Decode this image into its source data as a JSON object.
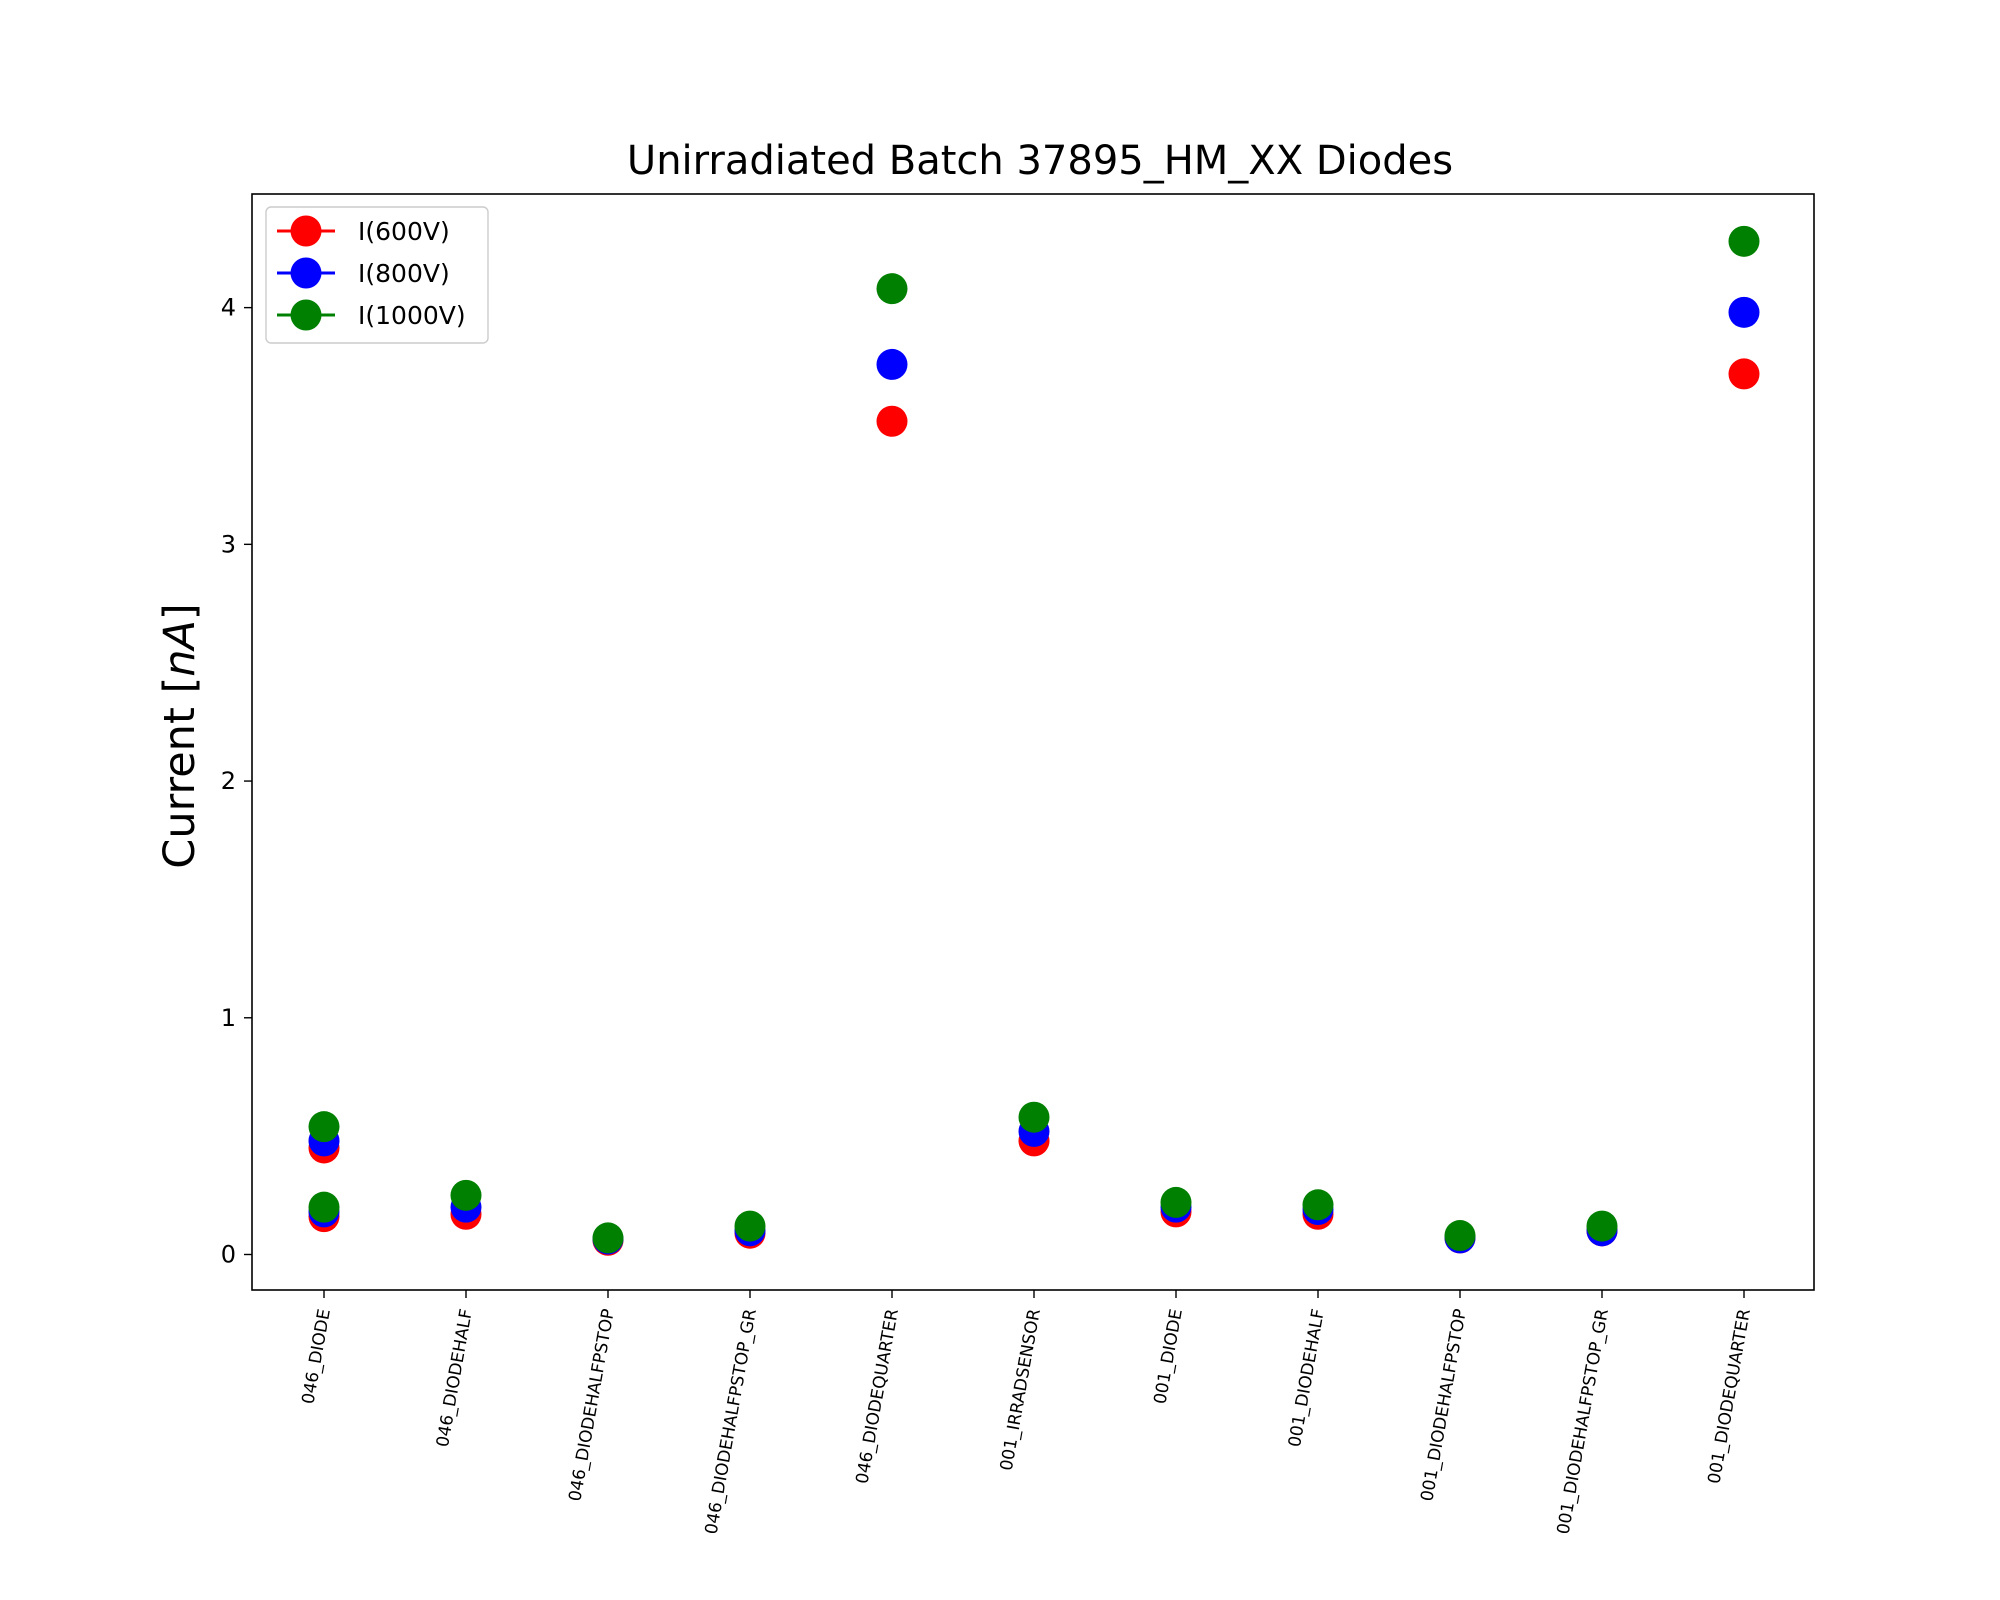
{
  "chart_data": {
    "type": "scatter",
    "title": "Unirradiated Batch 37895_HM_XX Diodes",
    "xlabel": "",
    "ylabel": "Current [nA]",
    "ylabel_plain": "Current [",
    "ylabel_italic": "nA",
    "ylabel_close": "]",
    "categories": [
      "046_DIODE",
      "046_DIODEHALF",
      "046_DIODEHALFPSTOP",
      "046_DIODEHALFPSTOP_GR",
      "046_DIODEQUARTER",
      "001_IRRADSENSOR",
      "001_DIODE",
      "001_DIODEHALF",
      "001_DIODEHALFPSTOP",
      "001_DIODEHALFPSTOP_GR",
      "001_DIODEQUARTER"
    ],
    "ylim": [
      -0.15,
      4.48
    ],
    "yticks": [
      0,
      1,
      2,
      3,
      4
    ],
    "grid": false,
    "legend_position": "top-left",
    "series": [
      {
        "name": "I(600V)",
        "color": "#ff0000",
        "points": [
          [
            0,
            0.45
          ],
          [
            0,
            0.16
          ],
          [
            1,
            0.17
          ],
          [
            2,
            0.06
          ],
          [
            3,
            0.09
          ],
          [
            4,
            3.52
          ],
          [
            5,
            0.48
          ],
          [
            6,
            0.18
          ],
          [
            7,
            0.17
          ],
          [
            8,
            0.07
          ],
          [
            9,
            0.1
          ],
          [
            10,
            3.72
          ]
        ]
      },
      {
        "name": "I(800V)",
        "color": "#0000ff",
        "points": [
          [
            0,
            0.48
          ],
          [
            0,
            0.18
          ],
          [
            1,
            0.2
          ],
          [
            2,
            0.065
          ],
          [
            3,
            0.1
          ],
          [
            4,
            3.76
          ],
          [
            5,
            0.52
          ],
          [
            6,
            0.2
          ],
          [
            7,
            0.19
          ],
          [
            8,
            0.07
          ],
          [
            9,
            0.1
          ],
          [
            10,
            3.98
          ]
        ]
      },
      {
        "name": "I(1000V)",
        "color": "#008000",
        "points": [
          [
            0,
            0.54
          ],
          [
            0,
            0.2
          ],
          [
            1,
            0.25
          ],
          [
            2,
            0.07
          ],
          [
            3,
            0.12
          ],
          [
            4,
            4.08
          ],
          [
            5,
            0.58
          ],
          [
            6,
            0.22
          ],
          [
            7,
            0.21
          ],
          [
            8,
            0.08
          ],
          [
            9,
            0.12
          ],
          [
            10,
            4.28
          ]
        ]
      }
    ]
  }
}
